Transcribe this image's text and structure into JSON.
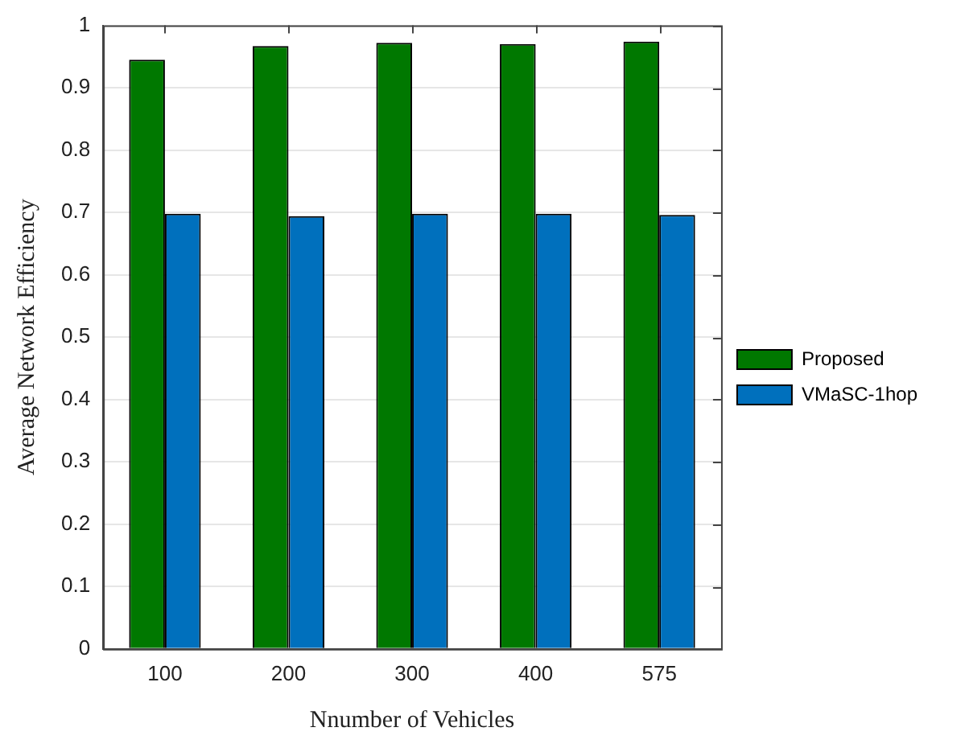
{
  "chart_data": {
    "type": "bar",
    "xlabel": "Nnumber of Vehicles",
    "ylabel": "Average Network Efficiency",
    "categories": [
      "100",
      "200",
      "300",
      "400",
      "575"
    ],
    "series": [
      {
        "name": "Proposed",
        "color": "#007800",
        "values": [
          0.945,
          0.967,
          0.972,
          0.97,
          0.974
        ]
      },
      {
        "name": "VMaSC-1hop",
        "color": "#0070bd",
        "values": [
          0.698,
          0.694,
          0.698,
          0.698,
          0.696
        ]
      }
    ],
    "ylim": [
      0,
      1
    ],
    "yticks": [
      0,
      0.1,
      0.2,
      0.3,
      0.4,
      0.5,
      0.6,
      0.7,
      0.8,
      0.9,
      1
    ],
    "grid": "y",
    "legend": "right"
  }
}
